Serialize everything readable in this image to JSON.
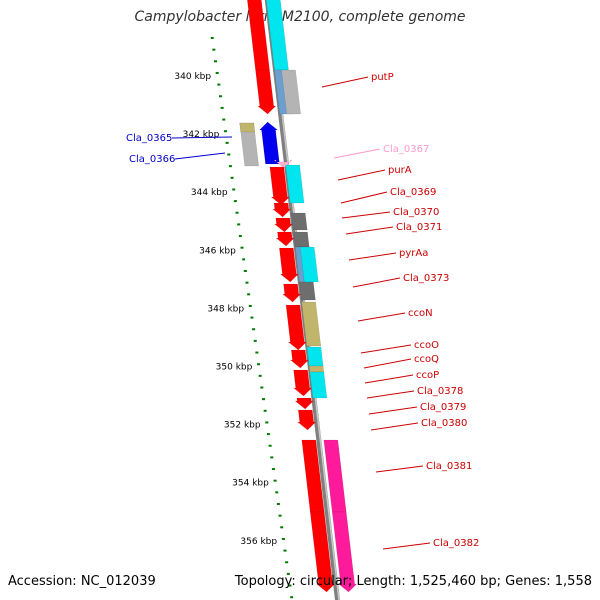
{
  "title": "Campylobacter lari RM2100, complete genome",
  "footer": {
    "accession": "Accession: NC_012039",
    "summary": "Topology: circular; Length: 1,525,460 bp; Genes: 1,558"
  },
  "colors": {
    "backbone": "#808080",
    "tick": "#007a00",
    "ruler_label": "#000000",
    "forward_label": "#cc0000",
    "reverse_label": "#0000cc",
    "faded_label": "#ff99cc",
    "gene_red": "#ff0000",
    "gene_blue": "#0000ee",
    "cyan": "#00e5ee",
    "steelblue": "#6a9fcf",
    "silver": "#b4b4b4",
    "darkgray": "#6e6e6e",
    "khaki": "#c1b46b",
    "magenta": "#ff1a9c",
    "pink": "#ffb0d0"
  },
  "ruler": {
    "labels": [
      "340 kbp",
      "342 kbp",
      "344 kbp",
      "346 kbp",
      "348 kbp",
      "350 kbp",
      "352 kbp",
      "354 kbp",
      "356 kbp"
    ]
  },
  "genes": [
    {
      "name": "putP",
      "strand": "+",
      "color": "forward"
    },
    {
      "name": "Cla_0365",
      "strand": "-",
      "color": "reverse"
    },
    {
      "name": "Cla_0366",
      "strand": "-",
      "color": "reverse"
    },
    {
      "name": "Cla_0367",
      "strand": "+",
      "color": "faded"
    },
    {
      "name": "purA",
      "strand": "+",
      "color": "forward"
    },
    {
      "name": "Cla_0369",
      "strand": "+",
      "color": "forward"
    },
    {
      "name": "Cla_0370",
      "strand": "+",
      "color": "forward"
    },
    {
      "name": "Cla_0371",
      "strand": "+",
      "color": "forward"
    },
    {
      "name": "pyrAa",
      "strand": "+",
      "color": "forward"
    },
    {
      "name": "Cla_0373",
      "strand": "+",
      "color": "forward"
    },
    {
      "name": "ccoN",
      "strand": "+",
      "color": "forward"
    },
    {
      "name": "ccoO",
      "strand": "+",
      "color": "forward"
    },
    {
      "name": "ccoQ",
      "strand": "+",
      "color": "forward"
    },
    {
      "name": "ccoP",
      "strand": "+",
      "color": "forward"
    },
    {
      "name": "Cla_0378",
      "strand": "+",
      "color": "forward"
    },
    {
      "name": "Cla_0379",
      "strand": "+",
      "color": "forward"
    },
    {
      "name": "Cla_0380",
      "strand": "+",
      "color": "forward"
    },
    {
      "name": "Cla_0381",
      "strand": "+",
      "color": "forward"
    },
    {
      "name": "Cla_0382",
      "strand": "+",
      "color": "forward"
    }
  ]
}
